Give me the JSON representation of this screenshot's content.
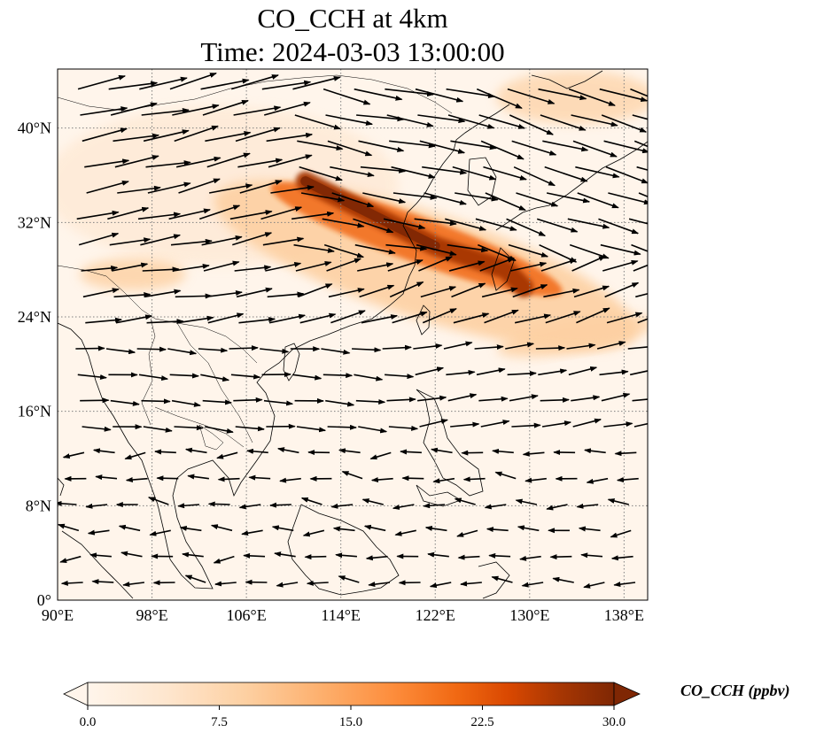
{
  "title": {
    "line1": "CO_CCH at 4km",
    "line2": "Time: 2024-03-03 13:00:00"
  },
  "map": {
    "lon_range": [
      90,
      140
    ],
    "lat_range": [
      0,
      45
    ],
    "lon_ticks": [
      {
        "value": 90,
        "label": "90°E"
      },
      {
        "value": 98,
        "label": "98°E"
      },
      {
        "value": 106,
        "label": "106°E"
      },
      {
        "value": 114,
        "label": "114°E"
      },
      {
        "value": 122,
        "label": "122°E"
      },
      {
        "value": 130,
        "label": "130°E"
      },
      {
        "value": 138,
        "label": "138°E"
      }
    ],
    "lat_ticks": [
      {
        "value": 0,
        "label": "0°"
      },
      {
        "value": 8,
        "label": "8°N"
      },
      {
        "value": 16,
        "label": "16°N"
      },
      {
        "value": 24,
        "label": "24°N"
      },
      {
        "value": 32,
        "label": "32°N"
      },
      {
        "value": 40,
        "label": "40°N"
      }
    ],
    "gridlines": true,
    "plume_core_path": [
      [
        111,
        35.5
      ],
      [
        114,
        34
      ],
      [
        118,
        32
      ],
      [
        122,
        30
      ],
      [
        125,
        29
      ],
      [
        128,
        28
      ],
      [
        129.5,
        26.5
      ]
    ],
    "wind_arrows": "lon/lat/u/v vectors drawn as black quiver arrows"
  },
  "colorbar": {
    "title": "CO_CCH (ppbv)",
    "min": 0.0,
    "max": 30.0,
    "ticks": [
      {
        "value": 0.0,
        "label": "0.0"
      },
      {
        "value": 7.5,
        "label": "7.5"
      },
      {
        "value": 15.0,
        "label": "15.0"
      },
      {
        "value": 22.5,
        "label": "22.5"
      },
      {
        "value": 30.0,
        "label": "30.0"
      }
    ],
    "colors": [
      "#fff5eb",
      "#fee6ce",
      "#fdd0a2",
      "#fdae6b",
      "#fd8d3c",
      "#f16913",
      "#d94801",
      "#a63603",
      "#7f2704"
    ],
    "extend": "both"
  }
}
